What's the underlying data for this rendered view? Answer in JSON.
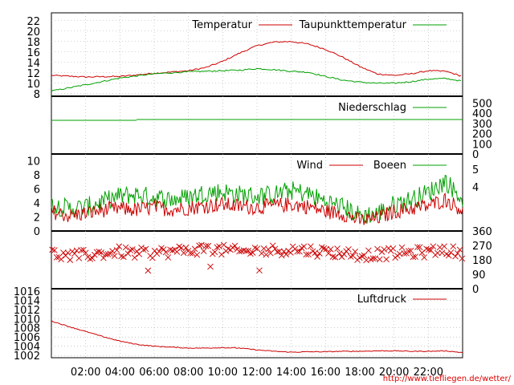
{
  "credit": "http://www.tiefliegen.de/wetter/",
  "colors": {
    "red": "#cc0000",
    "green": "#00a000",
    "grid": "#aaaaaa"
  },
  "x_ticks": [
    "02:00",
    "04:00",
    "06:00",
    "08:00",
    "10:00",
    "12:00",
    "14:00",
    "16:00",
    "18:00",
    "20:00",
    "22:00"
  ],
  "chart_data": [
    {
      "type": "line",
      "panel": "temperature",
      "x": [
        0,
        2,
        4,
        6,
        8,
        9,
        10,
        11,
        12,
        13,
        14,
        15,
        16,
        17,
        18,
        19,
        20,
        21,
        22,
        23,
        24
      ],
      "series": [
        {
          "name": "Temperatur",
          "color": "#cc0000",
          "values": [
            11.5,
            11.2,
            11.3,
            11.9,
            12.4,
            13.0,
            14.2,
            15.8,
            17.2,
            17.9,
            18.0,
            17.5,
            16.5,
            15.0,
            13.2,
            11.8,
            11.5,
            11.8,
            12.4,
            12.3,
            11.3
          ]
        },
        {
          "name": "Taupunkttemperatur",
          "color": "#00a000",
          "values": [
            8.5,
            9.7,
            11.0,
            11.8,
            12.2,
            12.3,
            12.4,
            12.5,
            12.8,
            12.6,
            12.3,
            12.1,
            11.3,
            10.6,
            10.2,
            10.0,
            10.0,
            10.3,
            10.8,
            10.9,
            10.4
          ]
        }
      ],
      "yticks": [
        8,
        10,
        12,
        14,
        16,
        18,
        20,
        22
      ],
      "ylim": [
        7.5,
        23.5
      ],
      "legend": "top-right",
      "grid": "dotted"
    },
    {
      "type": "line",
      "panel": "precipitation",
      "series": [
        {
          "name": "Niederschlag",
          "color": "#00a000",
          "values": [
            0,
            0,
            0,
            0,
            0,
            0,
            0,
            0,
            0,
            0,
            0,
            0,
            0
          ]
        }
      ],
      "yticks_right": [
        0,
        100,
        200,
        300,
        400,
        500
      ],
      "legend": "top-right"
    },
    {
      "type": "line",
      "panel": "wind",
      "x": [
        0,
        1,
        2,
        3,
        4,
        5,
        6,
        7,
        8,
        9,
        10,
        11,
        12,
        13,
        14,
        15,
        16,
        17,
        18,
        19,
        20,
        21,
        22,
        23,
        24
      ],
      "series": [
        {
          "name": "Wind",
          "color": "#cc0000",
          "values": [
            2.8,
            2.2,
            2.5,
            3.0,
            3.2,
            3.0,
            3.4,
            3.1,
            3.3,
            3.6,
            3.8,
            3.5,
            3.4,
            3.6,
            3.8,
            3.5,
            2.8,
            2.5,
            1.5,
            1.8,
            2.8,
            3.2,
            3.6,
            4.5,
            3.0
          ]
        },
        {
          "name": "Boeen",
          "color": "#00a000",
          "values": [
            3.8,
            3.2,
            3.4,
            4.2,
            5.0,
            5.2,
            4.8,
            4.5,
            4.8,
            5.5,
            5.6,
            5.2,
            5.0,
            5.2,
            5.8,
            5.3,
            4.2,
            3.5,
            2.2,
            2.5,
            3.8,
            4.5,
            5.5,
            7.2,
            4.5
          ]
        }
      ],
      "yticks": [
        0,
        2,
        4,
        6,
        8,
        10
      ],
      "yticks_right": [
        "4",
        "5"
      ],
      "ylim": [
        0,
        11
      ],
      "legend": "top-right"
    },
    {
      "type": "scatter",
      "panel": "wind-direction",
      "x": [
        0,
        1,
        2,
        3,
        4,
        5,
        6,
        7,
        8,
        9,
        10,
        11,
        12,
        13,
        14,
        15,
        16,
        17,
        18,
        19,
        20,
        21,
        22,
        23,
        24
      ],
      "values": [
        220,
        200,
        210,
        220,
        230,
        220,
        225,
        230,
        240,
        250,
        240,
        230,
        235,
        240,
        245,
        240,
        230,
        225,
        210,
        215,
        220,
        225,
        230,
        245,
        215
      ],
      "yticks_right": [
        0,
        90,
        180,
        270,
        360
      ],
      "ylim": [
        0,
        360
      ]
    },
    {
      "type": "line",
      "panel": "pressure",
      "x": [
        0,
        1,
        2,
        3,
        4,
        5,
        6,
        7,
        8,
        9,
        10,
        11,
        12,
        13,
        14,
        15,
        16,
        17,
        18,
        19,
        20,
        21,
        22,
        23,
        24
      ],
      "series": [
        {
          "name": "Luftdruck",
          "color": "#cc0000",
          "values": [
            1009.5,
            1008.3,
            1007.2,
            1006.1,
            1005.1,
            1004.4,
            1004.0,
            1003.8,
            1003.6,
            1003.6,
            1003.7,
            1003.6,
            1003.2,
            1002.9,
            1002.7,
            1002.8,
            1002.8,
            1002.9,
            1002.9,
            1003.0,
            1003.0,
            1002.9,
            1002.9,
            1003.0,
            1002.6
          ]
        }
      ],
      "yticks": [
        1002,
        1004,
        1006,
        1008,
        1010,
        1012,
        1014,
        1016
      ],
      "ylim": [
        1001.5,
        1016.5
      ],
      "legend": "top-right"
    }
  ]
}
